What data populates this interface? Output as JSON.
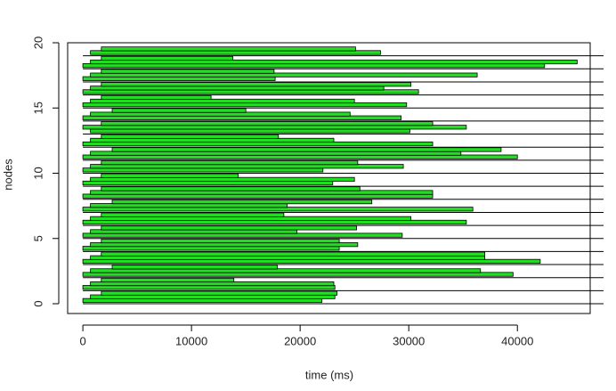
{
  "chart_data": {
    "type": "gantt",
    "xlabel": "time (ms)",
    "ylabel": "nodes",
    "xlim": [
      -1400,
      46700
    ],
    "ylim": [
      -0.75,
      20
    ],
    "xticks": [
      0,
      10000,
      20000,
      30000,
      40000
    ],
    "yticks": [
      0,
      5,
      10,
      15,
      20
    ],
    "color": "#22dd22",
    "tasks": [
      {
        "node": 0,
        "start": 0,
        "end": 22000
      },
      {
        "node": 0,
        "start": 700,
        "end": 23200
      },
      {
        "node": 0,
        "start": 1700,
        "end": 23400
      },
      {
        "node": 1,
        "start": 0,
        "end": 23200
      },
      {
        "node": 1,
        "start": 700,
        "end": 23100
      },
      {
        "node": 1,
        "start": 1700,
        "end": 13900
      },
      {
        "node": 2,
        "start": 0,
        "end": 39600
      },
      {
        "node": 2,
        "start": 700,
        "end": 36600
      },
      {
        "node": 2,
        "start": 2700,
        "end": 17900
      },
      {
        "node": 3,
        "start": 0,
        "end": 42100
      },
      {
        "node": 3,
        "start": 700,
        "end": 37000
      },
      {
        "node": 3,
        "start": 1700,
        "end": 37000
      },
      {
        "node": 4,
        "start": 0,
        "end": 23600
      },
      {
        "node": 4,
        "start": 700,
        "end": 25300
      },
      {
        "node": 4,
        "start": 1700,
        "end": 23600
      },
      {
        "node": 5,
        "start": 0,
        "end": 29400
      },
      {
        "node": 5,
        "start": 700,
        "end": 19700
      },
      {
        "node": 5,
        "start": 1700,
        "end": 25200
      },
      {
        "node": 6,
        "start": 0,
        "end": 35300
      },
      {
        "node": 6,
        "start": 700,
        "end": 30200
      },
      {
        "node": 6,
        "start": 1700,
        "end": 18500
      },
      {
        "node": 7,
        "start": 0,
        "end": 35900
      },
      {
        "node": 7,
        "start": 700,
        "end": 18800
      },
      {
        "node": 7,
        "start": 2700,
        "end": 26600
      },
      {
        "node": 8,
        "start": 0,
        "end": 32200
      },
      {
        "node": 8,
        "start": 700,
        "end": 32200
      },
      {
        "node": 8,
        "start": 1700,
        "end": 25500
      },
      {
        "node": 9,
        "start": 0,
        "end": 23000
      },
      {
        "node": 9,
        "start": 700,
        "end": 25000
      },
      {
        "node": 9,
        "start": 1700,
        "end": 14300
      },
      {
        "node": 10,
        "start": 0,
        "end": 22100
      },
      {
        "node": 10,
        "start": 700,
        "end": 29500
      },
      {
        "node": 10,
        "start": 1700,
        "end": 25300
      },
      {
        "node": 11,
        "start": 0,
        "end": 40000
      },
      {
        "node": 11,
        "start": 700,
        "end": 34800
      },
      {
        "node": 11,
        "start": 2700,
        "end": 38500
      },
      {
        "node": 12,
        "start": 0,
        "end": 32200
      },
      {
        "node": 12,
        "start": 700,
        "end": 23100
      },
      {
        "node": 12,
        "start": 1700,
        "end": 18000
      },
      {
        "node": 13,
        "start": 700,
        "end": 30100
      },
      {
        "node": 13,
        "start": 0,
        "end": 35300
      },
      {
        "node": 13,
        "start": 1700,
        "end": 32200
      },
      {
        "node": 14,
        "start": 0,
        "end": 29300
      },
      {
        "node": 14,
        "start": 700,
        "end": 24600
      },
      {
        "node": 14,
        "start": 2700,
        "end": 15000
      },
      {
        "node": 15,
        "start": 0,
        "end": 29800
      },
      {
        "node": 15,
        "start": 700,
        "end": 25000
      },
      {
        "node": 15,
        "start": 1700,
        "end": 11800
      },
      {
        "node": 16,
        "start": 0,
        "end": 30900
      },
      {
        "node": 16,
        "start": 700,
        "end": 27700
      },
      {
        "node": 16,
        "start": 1700,
        "end": 30200
      },
      {
        "node": 17,
        "start": 0,
        "end": 17700
      },
      {
        "node": 17,
        "start": 700,
        "end": 36300
      },
      {
        "node": 17,
        "start": 1700,
        "end": 17600
      },
      {
        "node": 18,
        "start": 0,
        "end": 42500
      },
      {
        "node": 18,
        "start": 700,
        "end": 45500
      },
      {
        "node": 18,
        "start": 1700,
        "end": 13800
      },
      {
        "node": 19,
        "start": 700,
        "end": 27400
      },
      {
        "node": 19,
        "start": 1700,
        "end": 25100
      }
    ]
  }
}
